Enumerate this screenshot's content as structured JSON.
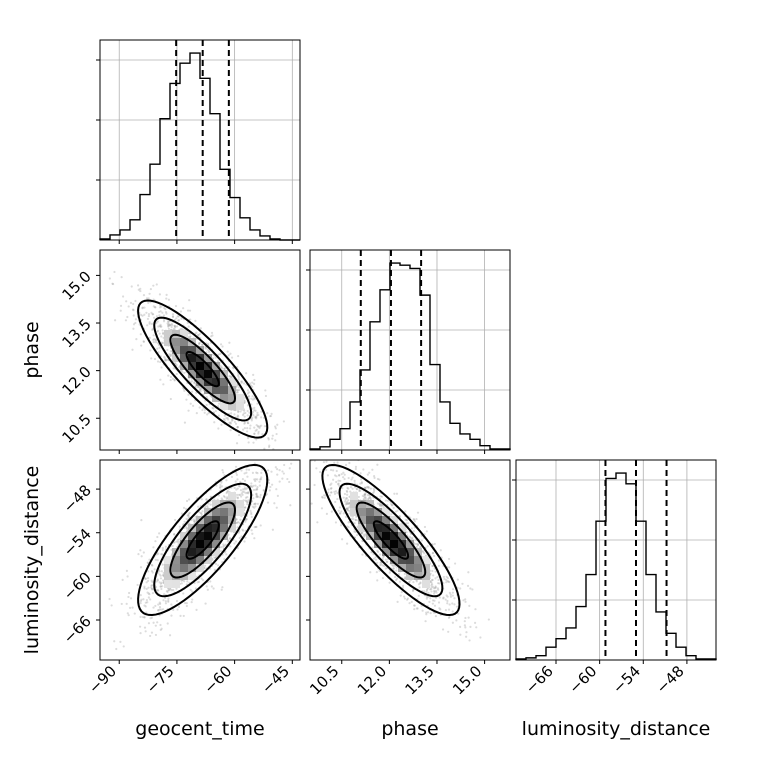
{
  "chart_data": {
    "type": "corner",
    "parameters": [
      {
        "name": "geocent_time",
        "label": "geocent_time",
        "range": [
          -95,
          -43
        ],
        "ticks": [
          -90,
          -75,
          -60,
          -45
        ],
        "tick_labels": [
          "−90",
          "−75",
          "−60",
          "−45"
        ],
        "quantiles": [
          -75.2,
          -68.3,
          -61.5
        ],
        "hist_counts": [
          1,
          5,
          10,
          20,
          45,
          75,
          120,
          155,
          175,
          185,
          160,
          125,
          70,
          42,
          22,
          10,
          4,
          1,
          0,
          0
        ]
      },
      {
        "name": "phase",
        "label": "phase",
        "range": [
          9.5,
          15.8
        ],
        "ticks": [
          10.5,
          12.0,
          13.5,
          15.0
        ],
        "tick_labels": [
          "10.5",
          "12.0",
          "13.5",
          "15.0"
        ],
        "quantiles": [
          11.1,
          12.05,
          13.0
        ],
        "hist_counts": [
          1,
          3,
          10,
          20,
          45,
          75,
          120,
          150,
          175,
          173,
          170,
          145,
          80,
          45,
          25,
          15,
          10,
          4,
          1,
          1
        ]
      },
      {
        "name": "luminosity_distance",
        "label": "luminosity_distance",
        "range": [
          -71.5,
          -44
        ],
        "ticks": [
          -66,
          -60,
          -54,
          -48
        ],
        "tick_labels": [
          "−66",
          "−60",
          "−54",
          "−48"
        ],
        "quantiles": [
          -59.2,
          -55.0,
          -50.8
        ],
        "hist_counts": [
          1,
          2,
          4,
          12,
          20,
          30,
          50,
          80,
          130,
          170,
          175,
          165,
          130,
          80,
          45,
          25,
          12,
          4,
          1,
          1
        ]
      }
    ],
    "hist_counts_approx_scale": "relative",
    "pairs": [
      {
        "x": "geocent_time",
        "y": "phase",
        "center": [
          -68.3,
          12.05
        ],
        "sd_x": 7,
        "sd_y": 0.9,
        "correlation": -0.85
      },
      {
        "x": "geocent_time",
        "y": "luminosity_distance",
        "center": [
          -68.3,
          -55.0
        ],
        "sd_x": 7,
        "sd_y": 4.3,
        "correlation": 0.8
      },
      {
        "x": "phase",
        "y": "luminosity_distance",
        "center": [
          12.05,
          -55.0
        ],
        "sd_x": 0.9,
        "sd_y": 4.3,
        "correlation": -0.85
      }
    ],
    "contour_levels_sigma": [
      0.5,
      1.0,
      1.5,
      2.0
    ],
    "grid": true,
    "quantile_line_style": "dashed"
  }
}
